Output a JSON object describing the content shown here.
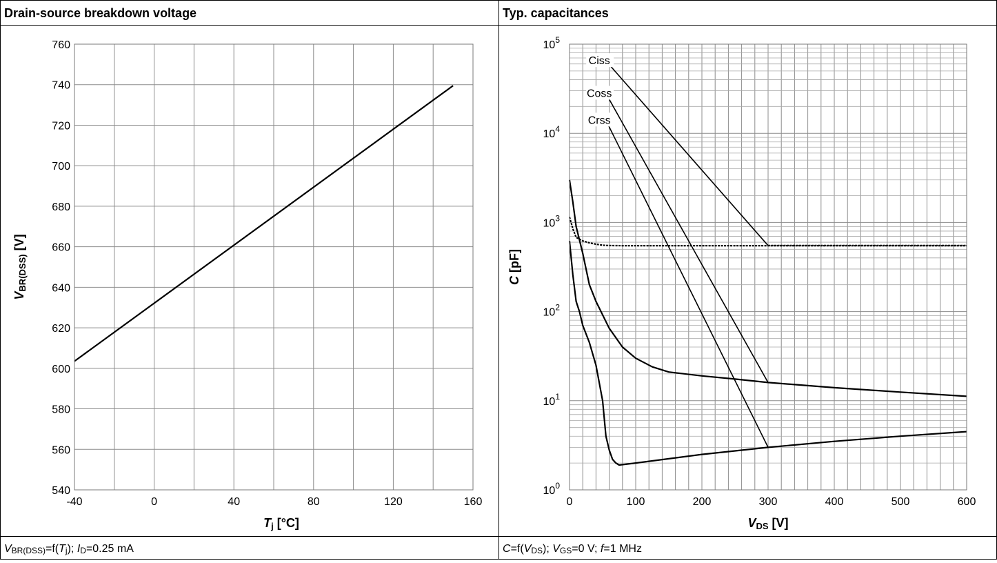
{
  "panels": {
    "left": {
      "title": "Drain-source breakdown voltage",
      "ylabel": {
        "var": "V",
        "sub": "BR(DSS)",
        "unit": " [V]"
      },
      "xlabel": {
        "var": "T",
        "sub": "j",
        "unit": " [°C]"
      },
      "footer": {
        "v": "V",
        "vsub": "BR(DSS)",
        "mid": "=f(",
        "t": "T",
        "tsub": "j",
        "rest": "); ",
        "i": "I",
        "isub": "D",
        "end": "=0.25 mA"
      }
    },
    "right": {
      "title": "Typ. capacitances",
      "ylabel": {
        "var": "C",
        "unit": " [pF]"
      },
      "xlabel": {
        "var": "V",
        "sub": "DS",
        "unit": " [V]"
      },
      "footer": {
        "c": "C",
        "p1": "=f(",
        "v": "V",
        "vsub": "DS",
        "p2": "); ",
        "g": "V",
        "gsub": "GS",
        "p3": "=0 V; ",
        "f": "f",
        "p4": "=1 MHz"
      }
    }
  },
  "chart_data": [
    {
      "type": "line",
      "title": "Drain-source breakdown voltage",
      "xlabel": "Tj [°C]",
      "ylabel": "VBR(DSS) [V]",
      "xlim": [
        -40,
        160
      ],
      "ylim": [
        540,
        760
      ],
      "xticks": [
        -40,
        0,
        40,
        80,
        120,
        160
      ],
      "yticks": [
        540,
        560,
        580,
        600,
        620,
        640,
        660,
        680,
        700,
        720,
        740,
        760
      ],
      "grid": true,
      "series": [
        {
          "x": [
            -40,
            150
          ],
          "y": [
            603.5,
            739.5
          ]
        }
      ]
    },
    {
      "type": "line",
      "title": "Typ. capacitances",
      "xlabel": "VDS [V]",
      "ylabel": "C [pF]",
      "xlim": [
        0,
        600
      ],
      "ylim": [
        1,
        100000
      ],
      "yscale": "log",
      "xticks": [
        0,
        100,
        200,
        300,
        400,
        500,
        600
      ],
      "ytick_labels": [
        "10^0",
        "10^1",
        "10^2",
        "10^3",
        "10^4",
        "10^5"
      ],
      "grid": true,
      "series": [
        {
          "name": "Ciss",
          "x": [
            0,
            5,
            10,
            20,
            30,
            40,
            50,
            60,
            80,
            100,
            200,
            300,
            400,
            500,
            600
          ],
          "y": [
            1150,
            850,
            680,
            620,
            590,
            570,
            555,
            550,
            548,
            548,
            548,
            548,
            548,
            548,
            548
          ]
        },
        {
          "name": "Coss",
          "x": [
            0,
            5,
            10,
            20,
            30,
            40,
            60,
            80,
            100,
            125,
            150,
            200,
            250,
            300,
            400,
            500,
            600
          ],
          "y": [
            3000,
            1700,
            900,
            450,
            200,
            130,
            65,
            40,
            30,
            24,
            21,
            19,
            17.5,
            16,
            14,
            12.5,
            11.2
          ]
        },
        {
          "name": "Crss",
          "x": [
            0,
            5,
            10,
            15,
            20,
            30,
            40,
            50,
            55,
            60,
            65,
            70,
            75,
            100,
            200,
            300,
            400,
            500,
            600
          ],
          "y": [
            620,
            260,
            130,
            100,
            70,
            45,
            25,
            10,
            4,
            2.8,
            2.2,
            2.0,
            1.9,
            2.0,
            2.5,
            3.0,
            3.5,
            4.0,
            4.5
          ]
        },
        {
          "x": [
            300,
            600
          ],
          "y": [
            550,
            550
          ]
        }
      ],
      "annotations": [
        {
          "text": "Ciss",
          "x": 45,
          "y": 65000
        },
        {
          "text": "Coss",
          "x": 45,
          "y": 28000
        },
        {
          "text": "Crss",
          "x": 45,
          "y": 14000
        }
      ],
      "reference_lines": [
        {
          "from": [
            55,
            65000
          ],
          "to": [
            300,
            550
          ]
        },
        {
          "from": [
            55,
            28000
          ],
          "to": [
            300,
            16
          ]
        },
        {
          "from": [
            55,
            14000
          ],
          "to": [
            300,
            3
          ]
        }
      ]
    }
  ]
}
